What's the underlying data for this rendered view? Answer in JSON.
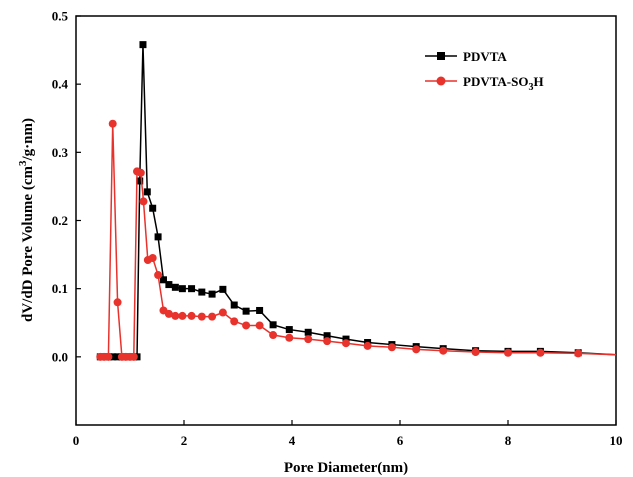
{
  "chart_data": {
    "type": "line",
    "title": "",
    "xlabel": "Pore Diameter(nm)",
    "ylabel": {
      "prefix": "dV/dD Pore Volume (cm",
      "sup": "3",
      "suffix": "/g·nm)"
    },
    "xlim": [
      0,
      10
    ],
    "ylim": [
      -0.1,
      0.5
    ],
    "xticks": [
      0,
      2,
      4,
      6,
      8,
      10
    ],
    "yticks": [
      0.0,
      0.1,
      0.2,
      0.3,
      0.4,
      0.5
    ],
    "ytick_labels": [
      "0.0",
      "0.1",
      "0.2",
      "0.3",
      "0.4",
      "0.5"
    ],
    "grid": false,
    "legend_position": "top-right",
    "series": [
      {
        "name": {
          "prefix": "PDVTA",
          "sub": "",
          "suffix": ""
        },
        "color": "#000000",
        "marker": "square",
        "x": [
          0.45,
          0.52,
          0.6,
          0.68,
          0.77,
          0.85,
          0.92,
          1.0,
          1.07,
          1.13,
          1.18,
          1.24,
          1.32,
          1.42,
          1.52,
          1.62,
          1.72,
          1.84,
          1.97,
          2.14,
          2.33,
          2.52,
          2.72,
          2.93,
          3.15,
          3.4,
          3.65,
          3.95,
          4.3,
          4.65,
          5.0,
          5.4,
          5.85,
          6.3,
          6.8,
          7.4,
          8.0,
          8.6,
          9.3
        ],
        "y": [
          0.0,
          0.0,
          0.0,
          0.0,
          0.0,
          0.0,
          0.0,
          0.0,
          0.0,
          0.0,
          0.258,
          0.458,
          0.242,
          0.218,
          0.176,
          0.113,
          0.106,
          0.102,
          0.1,
          0.1,
          0.095,
          0.092,
          0.099,
          0.076,
          0.067,
          0.068,
          0.047,
          0.04,
          0.036,
          0.031,
          0.026,
          0.021,
          0.018,
          0.015,
          0.012,
          0.009,
          0.008,
          0.008,
          0.006
        ]
      },
      {
        "name": {
          "prefix": "PDVTA-SO",
          "sub": "3",
          "suffix": "H"
        },
        "color": "#e8322c",
        "marker": "circle",
        "x": [
          0.45,
          0.52,
          0.6,
          0.68,
          0.77,
          0.85,
          0.92,
          1.0,
          1.07,
          1.13,
          1.2,
          1.25,
          1.33,
          1.42,
          1.52,
          1.62,
          1.72,
          1.84,
          1.97,
          2.14,
          2.33,
          2.52,
          2.72,
          2.93,
          3.15,
          3.4,
          3.65,
          3.95,
          4.3,
          4.65,
          5.0,
          5.4,
          5.85,
          6.3,
          6.8,
          7.4,
          8.0,
          8.6,
          9.3
        ],
        "y": [
          0.0,
          0.0,
          0.0,
          0.342,
          0.08,
          0.0,
          0.0,
          0.0,
          0.0,
          0.272,
          0.27,
          0.228,
          0.142,
          0.145,
          0.12,
          0.068,
          0.063,
          0.06,
          0.06,
          0.06,
          0.059,
          0.059,
          0.065,
          0.052,
          0.046,
          0.046,
          0.032,
          0.028,
          0.026,
          0.023,
          0.02,
          0.016,
          0.014,
          0.011,
          0.009,
          0.007,
          0.006,
          0.006,
          0.005
        ]
      }
    ],
    "tail": {
      "x": 10,
      "y": 0.003
    }
  }
}
